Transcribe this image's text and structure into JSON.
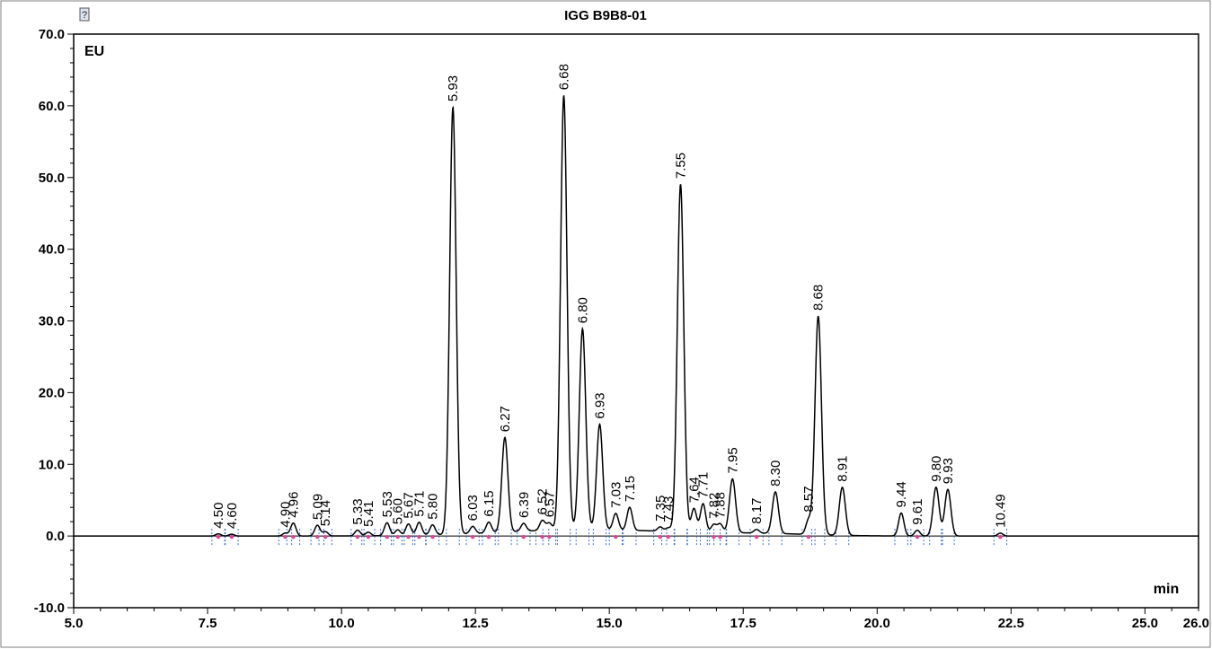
{
  "chart_data": {
    "type": "line",
    "title": "IGG B9B8-01",
    "ylabel": "EU",
    "xlabel": "min",
    "xlim": [
      5.0,
      26.0
    ],
    "ylim": [
      -10.0,
      70.0
    ],
    "x_ticks": [
      "5.0",
      "7.5",
      "10.0",
      "12.5",
      "15.0",
      "17.5",
      "20.0",
      "22.5",
      "25.0",
      "26.0"
    ],
    "y_ticks": [
      "-10.0",
      "0.0",
      "10.0",
      "20.0",
      "30.0",
      "40.0",
      "50.0",
      "60.0",
      "70.0"
    ],
    "x_tick_values": [
      5.0,
      7.5,
      10.0,
      12.5,
      15.0,
      17.5,
      20.0,
      22.5,
      25.0,
      26.0
    ],
    "y_tick_values": [
      -10,
      0,
      10,
      20,
      30,
      40,
      50,
      60,
      70
    ],
    "grid": false,
    "series": [
      {
        "peaks": [
          {
            "rt": 7.7,
            "height": 0.3,
            "label": "4.50"
          },
          {
            "rt": 7.95,
            "height": 0.25,
            "label": "4.60"
          },
          {
            "rt": 8.95,
            "height": 0.4,
            "label": "4.90"
          },
          {
            "rt": 9.1,
            "height": 1.8,
            "label": "4.96"
          },
          {
            "rt": 9.55,
            "height": 1.5,
            "label": "5.09"
          },
          {
            "rt": 9.7,
            "height": 0.6,
            "label": "5.14"
          },
          {
            "rt": 10.3,
            "height": 0.8,
            "label": "5.33"
          },
          {
            "rt": 10.5,
            "height": 0.5,
            "label": "5.41"
          },
          {
            "rt": 10.85,
            "height": 1.8,
            "label": "5.53"
          },
          {
            "rt": 11.05,
            "height": 0.8,
            "label": "5.60"
          },
          {
            "rt": 11.25,
            "height": 1.6,
            "label": "5.67"
          },
          {
            "rt": 11.45,
            "height": 1.8,
            "label": "5.71"
          },
          {
            "rt": 11.7,
            "height": 1.4,
            "label": "5.80"
          },
          {
            "rt": 12.08,
            "height": 59.6,
            "label": "5.93"
          },
          {
            "rt": 12.45,
            "height": 1.0,
            "label": "6.03"
          },
          {
            "rt": 12.75,
            "height": 1.5,
            "label": "6.15"
          },
          {
            "rt": 13.05,
            "height": 13.2,
            "label": "6.27"
          },
          {
            "rt": 13.4,
            "height": 1.1,
            "label": "6.39"
          },
          {
            "rt": 13.75,
            "height": 1.4,
            "label": "6.52"
          },
          {
            "rt": 13.88,
            "height": 1.0,
            "label": "6.57"
          },
          {
            "rt": 14.15,
            "height": 60.6,
            "label": "6.68"
          },
          {
            "rt": 14.5,
            "height": 28.0,
            "label": "6.80"
          },
          {
            "rt": 14.82,
            "height": 14.7,
            "label": "6.93"
          },
          {
            "rt": 15.12,
            "height": 2.3,
            "label": "7.03"
          },
          {
            "rt": 15.38,
            "height": 3.2,
            "label": "7.15"
          },
          {
            "rt": 15.95,
            "height": 0.6,
            "label": "7.35"
          },
          {
            "rt": 16.1,
            "height": 0.5,
            "label": "7.43"
          },
          {
            "rt": 16.33,
            "height": 48.5,
            "label": "7.55"
          },
          {
            "rt": 16.58,
            "height": 3.3,
            "label": "7.64"
          },
          {
            "rt": 16.75,
            "height": 4.0,
            "label": "7.71"
          },
          {
            "rt": 16.95,
            "height": 1.1,
            "label": "7.82"
          },
          {
            "rt": 17.07,
            "height": 1.2,
            "label": "7.88"
          },
          {
            "rt": 17.3,
            "height": 7.5,
            "label": "7.95"
          },
          {
            "rt": 17.75,
            "height": 0.5,
            "label": "8.17"
          },
          {
            "rt": 18.1,
            "height": 5.8,
            "label": "8.30"
          },
          {
            "rt": 18.72,
            "height": 2.0,
            "label": "8.57"
          },
          {
            "rt": 18.9,
            "height": 30.5,
            "label": "8.68"
          },
          {
            "rt": 19.35,
            "height": 6.7,
            "label": "8.91"
          },
          {
            "rt": 20.45,
            "height": 3.2,
            "label": "9.44"
          },
          {
            "rt": 20.75,
            "height": 0.8,
            "label": "9.61"
          },
          {
            "rt": 21.1,
            "height": 6.8,
            "label": "9.80"
          },
          {
            "rt": 21.32,
            "height": 6.5,
            "label": "9.93"
          },
          {
            "rt": 22.3,
            "height": 0.4,
            "label": "10.49"
          }
        ]
      }
    ],
    "colors": {
      "trace": "#000000",
      "baseline_marker": "#e0449a",
      "drop_line": "#3a6fd0",
      "frame": "#000000"
    }
  },
  "icons": {
    "top_left": "help-icon"
  }
}
